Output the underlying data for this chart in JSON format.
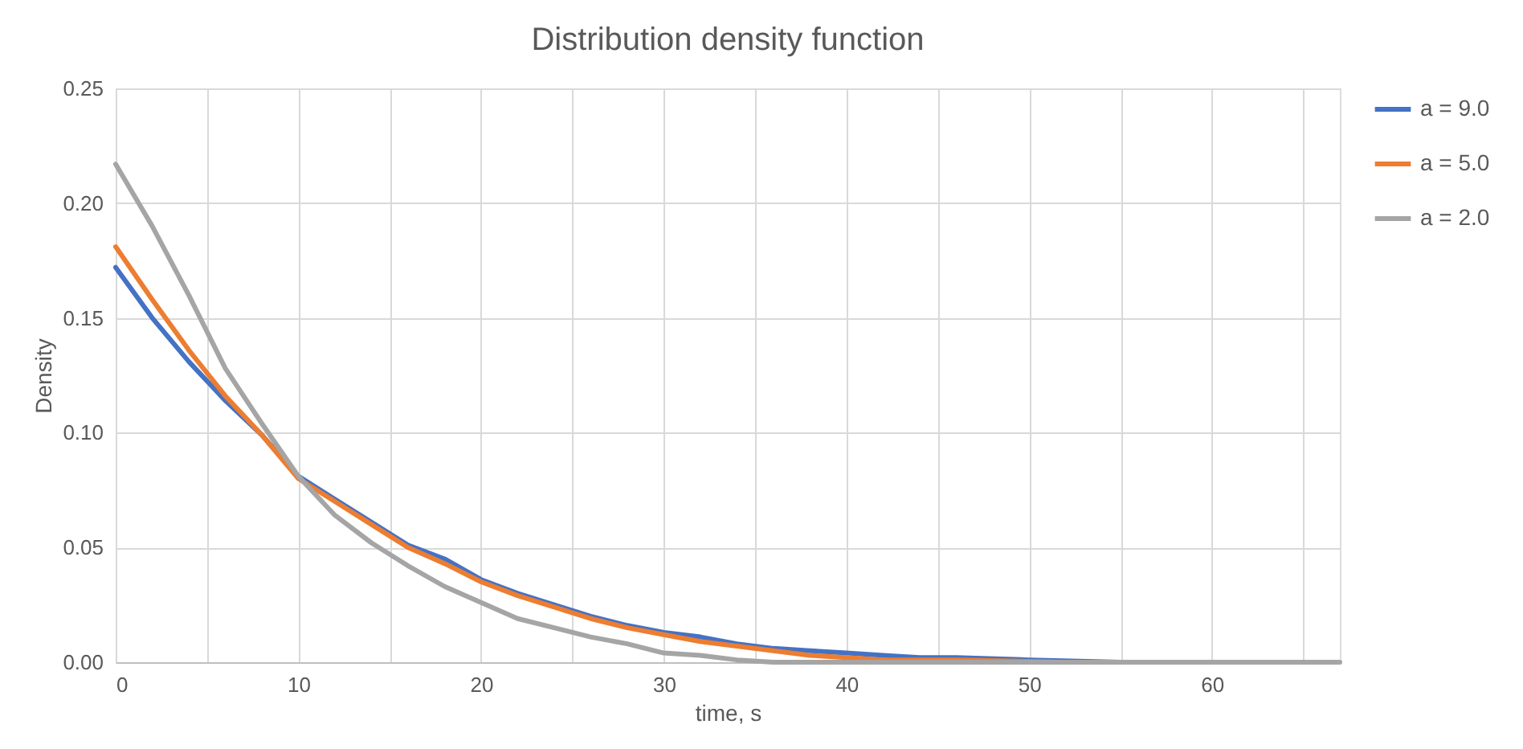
{
  "chart_data": {
    "type": "line",
    "title": "Distribution density function",
    "xlabel": "time, s",
    "ylabel": "Density",
    "xlim": [
      0,
      67
    ],
    "xticks": [
      0,
      {
        "value": 5,
        "label": null
      },
      10,
      {
        "value": 15,
        "label": null
      },
      20,
      {
        "value": 25,
        "label": null
      },
      30,
      {
        "value": 35,
        "label": null
      },
      40,
      {
        "value": 45,
        "label": null
      },
      50,
      {
        "value": 55,
        "label": null
      },
      60,
      {
        "value": 65,
        "label": null
      }
    ],
    "ylim": [
      0,
      0.25
    ],
    "yticks": [
      {
        "value": 0,
        "label": "0.00"
      },
      {
        "value": 0.05,
        "label": "0.05"
      },
      {
        "value": 0.1,
        "label": "0.10"
      },
      {
        "value": 0.15,
        "label": "0.15"
      },
      {
        "value": 0.2,
        "label": "0.20"
      },
      {
        "value": 0.25,
        "label": "0.25"
      }
    ],
    "grid": true,
    "legend": "right",
    "marker": "none",
    "line_style": "solid",
    "series": [
      {
        "name": "a = 9.0",
        "color": "#4472c4",
        "x": [
          0,
          2,
          4,
          6,
          8,
          10,
          12,
          14,
          16,
          18,
          20,
          22,
          24,
          26,
          28,
          30,
          32,
          34,
          36,
          38,
          40,
          42,
          44,
          46,
          50,
          55
        ],
        "values": [
          0.172,
          0.15,
          0.131,
          0.114,
          0.099,
          0.081,
          0.071,
          0.061,
          0.051,
          0.045,
          0.036,
          0.03,
          0.025,
          0.02,
          0.016,
          0.013,
          0.011,
          0.008,
          0.006,
          0.005,
          0.004,
          0.003,
          0.002,
          0.002,
          0.001,
          0
        ]
      },
      {
        "name": "a = 5.0",
        "color": "#ed7d31",
        "x": [
          0,
          2,
          4,
          6,
          8,
          10,
          12,
          14,
          16,
          18,
          20,
          22,
          24,
          26,
          28,
          30,
          32,
          34,
          36,
          38,
          40,
          42,
          46,
          52
        ],
        "values": [
          0.181,
          0.158,
          0.136,
          0.116,
          0.099,
          0.08,
          0.07,
          0.06,
          0.05,
          0.043,
          0.035,
          0.029,
          0.024,
          0.019,
          0.015,
          0.012,
          0.009,
          0.007,
          0.005,
          0.003,
          0.002,
          0.001,
          0.001,
          0
        ]
      },
      {
        "name": "a = 2.0",
        "color": "#a5a5a5",
        "x": [
          0,
          2,
          4,
          6,
          8,
          10,
          12,
          14,
          16,
          18,
          20,
          22,
          24,
          26,
          28,
          30,
          32,
          34,
          36,
          67
        ],
        "values": [
          0.217,
          0.19,
          0.16,
          0.128,
          0.104,
          0.081,
          0.064,
          0.052,
          0.042,
          0.033,
          0.026,
          0.019,
          0.015,
          0.011,
          0.008,
          0.004,
          0.003,
          0.001,
          0,
          0
        ]
      }
    ]
  }
}
